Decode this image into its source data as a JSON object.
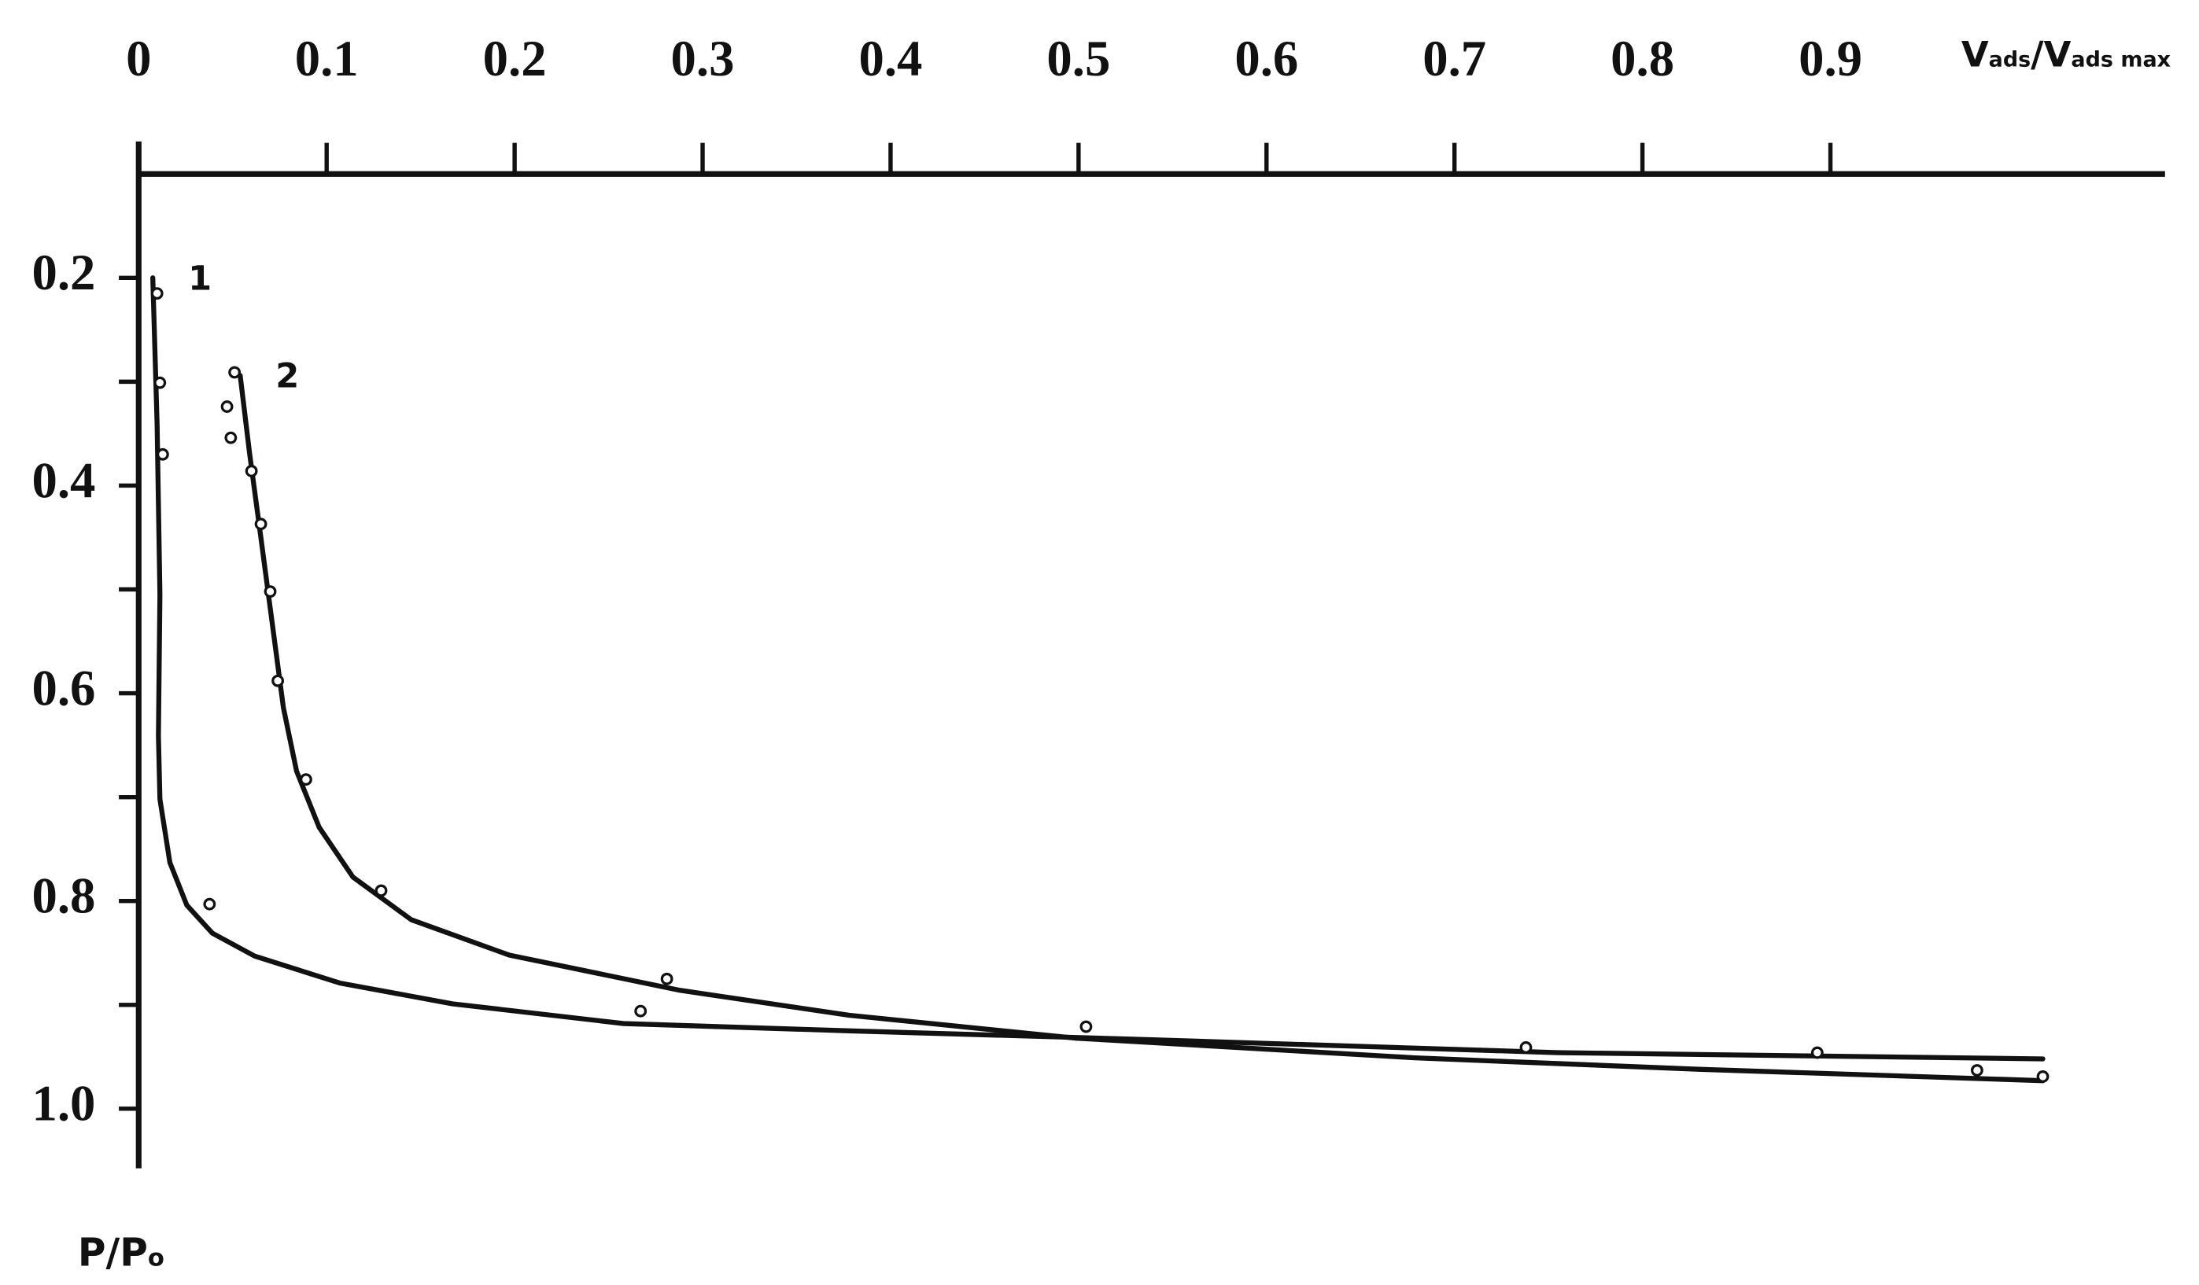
{
  "chart_data": {
    "type": "scatter",
    "x_label": [
      "V",
      "ads",
      "/V",
      "ads max"
    ],
    "y_label": [
      "P/P",
      "o"
    ],
    "xlim": [
      0,
      1.078
    ],
    "ylim": [
      0.1,
      1.056
    ],
    "y_inverted": true,
    "x_axis_position": "top",
    "xticks": [
      0,
      0.1,
      0.2,
      0.3,
      0.4,
      0.5,
      0.6,
      0.7,
      0.8,
      0.9
    ],
    "yticks": [
      0.2,
      0.4,
      0.6,
      0.8,
      {
        "value": 1,
        "label": "1.0"
      }
    ],
    "yminorticks": [
      0.3,
      0.5,
      0.7,
      0.9
    ],
    "series": [
      {
        "name": "1",
        "color": "#111111",
        "x": [
          0.0098,
          0.0113,
          0.0128,
          0.0377,
          0.267,
          0.504,
          0.738,
          0.978
        ],
        "values": [
          0.215,
          0.301,
          0.37,
          0.803,
          0.906,
          0.921,
          0.941,
          0.963
        ],
        "curve_x": [
          0.0075,
          0.0098,
          0.0113,
          0.0105,
          0.0113,
          0.0166,
          0.0256,
          0.0392,
          0.0617,
          0.107,
          0.167,
          0.258,
          0.378,
          0.529,
          0.755,
          1.013
        ],
        "curve_y": [
          0.2,
          0.341,
          0.505,
          0.641,
          0.702,
          0.763,
          0.804,
          0.831,
          0.853,
          0.879,
          0.899,
          0.918,
          0.925,
          0.933,
          0.946,
          0.952
        ]
      },
      {
        "name": "2",
        "color": "#111111",
        "x": [
          0.051,
          0.047,
          0.049,
          0.06,
          0.065,
          0.07,
          0.074,
          0.089,
          0.129,
          0.281,
          0.893,
          1.013
        ],
        "values": [
          0.291,
          0.324,
          0.354,
          0.386,
          0.437,
          0.502,
          0.588,
          0.683,
          0.79,
          0.875,
          0.946,
          0.969
        ],
        "curve_x": [
          0.054,
          0.059,
          0.065,
          0.071,
          0.077,
          0.084,
          0.096,
          0.114,
          0.145,
          0.197,
          0.288,
          0.378,
          0.498,
          0.679,
          0.83,
          1.013
        ],
        "curve_y": [
          0.294,
          0.369,
          0.45,
          0.532,
          0.614,
          0.675,
          0.729,
          0.777,
          0.818,
          0.852,
          0.886,
          0.91,
          0.932,
          0.951,
          0.962,
          0.973
        ]
      }
    ]
  }
}
